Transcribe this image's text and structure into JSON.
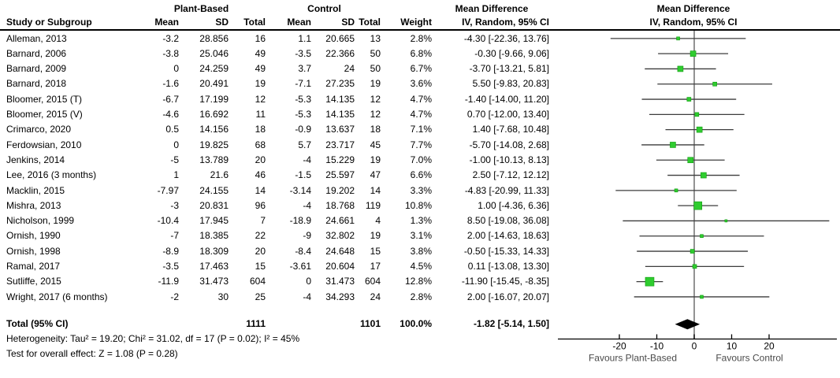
{
  "table": {
    "group1_label": "Plant-Based",
    "group2_label": "Control",
    "md_title": "Mean Difference",
    "md_subtitle": "IV, Random, 95% CI",
    "headers": {
      "study": "Study or Subgroup",
      "mean": "Mean",
      "sd": "SD",
      "total": "Total",
      "weight": "Weight"
    }
  },
  "rows": [
    {
      "name": "Alleman, 2013",
      "pb_mean": "-3.2",
      "pb_sd": "28.856",
      "pb_total": "16",
      "c_mean": "1.1",
      "c_sd": "20.665",
      "c_total": "13",
      "weight": "2.8%",
      "ci": "-4.30 [-22.36, 13.76]"
    },
    {
      "name": "Barnard, 2006",
      "pb_mean": "-3.8",
      "pb_sd": "25.046",
      "pb_total": "49",
      "c_mean": "-3.5",
      "c_sd": "22.366",
      "c_total": "50",
      "weight": "6.8%",
      "ci": "-0.30 [-9.66, 9.06]"
    },
    {
      "name": "Barnard, 2009",
      "pb_mean": "0",
      "pb_sd": "24.259",
      "pb_total": "49",
      "c_mean": "3.7",
      "c_sd": "24",
      "c_total": "50",
      "weight": "6.7%",
      "ci": "-3.70 [-13.21, 5.81]"
    },
    {
      "name": "Barnard, 2018",
      "pb_mean": "-1.6",
      "pb_sd": "20.491",
      "pb_total": "19",
      "c_mean": "-7.1",
      "c_sd": "27.235",
      "c_total": "19",
      "weight": "3.6%",
      "ci": "5.50 [-9.83, 20.83]"
    },
    {
      "name": "Bloomer, 2015 (T)",
      "pb_mean": "-6.7",
      "pb_sd": "17.199",
      "pb_total": "12",
      "c_mean": "-5.3",
      "c_sd": "14.135",
      "c_total": "12",
      "weight": "4.7%",
      "ci": "-1.40 [-14.00, 11.20]"
    },
    {
      "name": "Bloomer, 2015 (V)",
      "pb_mean": "-4.6",
      "pb_sd": "16.692",
      "pb_total": "11",
      "c_mean": "-5.3",
      "c_sd": "14.135",
      "c_total": "12",
      "weight": "4.7%",
      "ci": "0.70 [-12.00, 13.40]"
    },
    {
      "name": "Crimarco, 2020",
      "pb_mean": "0.5",
      "pb_sd": "14.156",
      "pb_total": "18",
      "c_mean": "-0.9",
      "c_sd": "13.637",
      "c_total": "18",
      "weight": "7.1%",
      "ci": "1.40 [-7.68, 10.48]"
    },
    {
      "name": "Ferdowsian, 2010",
      "pb_mean": "0",
      "pb_sd": "19.825",
      "pb_total": "68",
      "c_mean": "5.7",
      "c_sd": "23.717",
      "c_total": "45",
      "weight": "7.7%",
      "ci": "-5.70 [-14.08, 2.68]"
    },
    {
      "name": "Jenkins, 2014",
      "pb_mean": "-5",
      "pb_sd": "13.789",
      "pb_total": "20",
      "c_mean": "-4",
      "c_sd": "15.229",
      "c_total": "19",
      "weight": "7.0%",
      "ci": "-1.00 [-10.13, 8.13]"
    },
    {
      "name": "Lee, 2016 (3 months)",
      "pb_mean": "1",
      "pb_sd": "21.6",
      "pb_total": "46",
      "c_mean": "-1.5",
      "c_sd": "25.597",
      "c_total": "47",
      "weight": "6.6%",
      "ci": "2.50 [-7.12, 12.12]"
    },
    {
      "name": "Macklin, 2015",
      "pb_mean": "-7.97",
      "pb_sd": "24.155",
      "pb_total": "14",
      "c_mean": "-3.14",
      "c_sd": "19.202",
      "c_total": "14",
      "weight": "3.3%",
      "ci": "-4.83 [-20.99, 11.33]"
    },
    {
      "name": "Mishra, 2013",
      "pb_mean": "-3",
      "pb_sd": "20.831",
      "pb_total": "96",
      "c_mean": "-4",
      "c_sd": "18.768",
      "c_total": "119",
      "weight": "10.8%",
      "ci": "1.00 [-4.36, 6.36]"
    },
    {
      "name": "Nicholson, 1999",
      "pb_mean": "-10.4",
      "pb_sd": "17.945",
      "pb_total": "7",
      "c_mean": "-18.9",
      "c_sd": "24.661",
      "c_total": "4",
      "weight": "1.3%",
      "ci": "8.50 [-19.08, 36.08]"
    },
    {
      "name": "Ornish, 1990",
      "pb_mean": "-7",
      "pb_sd": "18.385",
      "pb_total": "22",
      "c_mean": "-9",
      "c_sd": "32.802",
      "c_total": "19",
      "weight": "3.1%",
      "ci": "2.00 [-14.63, 18.63]"
    },
    {
      "name": "Ornish, 1998",
      "pb_mean": "-8.9",
      "pb_sd": "18.309",
      "pb_total": "20",
      "c_mean": "-8.4",
      "c_sd": "24.648",
      "c_total": "15",
      "weight": "3.8%",
      "ci": "-0.50 [-15.33, 14.33]"
    },
    {
      "name": "Ramal, 2017",
      "pb_mean": "-3.5",
      "pb_sd": "17.463",
      "pb_total": "15",
      "c_mean": "-3.61",
      "c_sd": "20.604",
      "c_total": "17",
      "weight": "4.5%",
      "ci": "0.11 [-13.08, 13.30]"
    },
    {
      "name": "Sutliffe, 2015",
      "pb_mean": "-11.9",
      "pb_sd": "31.473",
      "pb_total": "604",
      "c_mean": "0",
      "c_sd": "31.473",
      "c_total": "604",
      "weight": "12.8%",
      "ci": "-11.90 [-15.45, -8.35]"
    },
    {
      "name": "Wright, 2017 (6 months)",
      "pb_mean": "-2",
      "pb_sd": "30",
      "pb_total": "25",
      "c_mean": "-4",
      "c_sd": "34.293",
      "c_total": "24",
      "weight": "2.8%",
      "ci": "2.00 [-16.07, 20.07]"
    }
  ],
  "total_row": {
    "label": "Total (95% CI)",
    "pb_total": "1111",
    "c_total": "1101",
    "weight": "100.0%",
    "ci": "-1.82 [-5.14, 1.50]"
  },
  "footer": {
    "heterogeneity": "Heterogeneity: Tau² = 19.20; Chi² = 31.02, df = 17 (P = 0.02); I² = 45%",
    "overall_effect": "Test for overall effect: Z = 1.08 (P = 0.28)"
  },
  "colors": {
    "marker_green": "#2fcc2f",
    "marker_border": "#0f9b0f",
    "ci_line": "#3c3c3c",
    "zero_line": "#808080",
    "axis": "#000000",
    "diamond": "#000000",
    "favours_text": "#4a4a4a"
  },
  "chart_data": {
    "type": "forest",
    "effect_measure": "Mean Difference",
    "model": "IV, Random, 95% CI",
    "axis": {
      "ticks": [
        -20,
        -10,
        0,
        10,
        20
      ],
      "xmin": -36.5,
      "xmax": 38.5,
      "zero_line": 0
    },
    "favours_left": "Favours Plant-Based",
    "favours_right": "Favours Control",
    "studies": [
      {
        "name": "Alleman, 2013",
        "md": -4.3,
        "lo": -22.36,
        "hi": 13.76,
        "weight": 2.8
      },
      {
        "name": "Barnard, 2006",
        "md": -0.3,
        "lo": -9.66,
        "hi": 9.06,
        "weight": 6.8
      },
      {
        "name": "Barnard, 2009",
        "md": -3.7,
        "lo": -13.21,
        "hi": 5.81,
        "weight": 6.7
      },
      {
        "name": "Barnard, 2018",
        "md": 5.5,
        "lo": -9.83,
        "hi": 20.83,
        "weight": 3.6
      },
      {
        "name": "Bloomer, 2015 (T)",
        "md": -1.4,
        "lo": -14.0,
        "hi": 11.2,
        "weight": 4.7
      },
      {
        "name": "Bloomer, 2015 (V)",
        "md": 0.7,
        "lo": -12.0,
        "hi": 13.4,
        "weight": 4.7
      },
      {
        "name": "Crimarco, 2020",
        "md": 1.4,
        "lo": -7.68,
        "hi": 10.48,
        "weight": 7.1
      },
      {
        "name": "Ferdowsian, 2010",
        "md": -5.7,
        "lo": -14.08,
        "hi": 2.68,
        "weight": 7.7
      },
      {
        "name": "Jenkins, 2014",
        "md": -1.0,
        "lo": -10.13,
        "hi": 8.13,
        "weight": 7.0
      },
      {
        "name": "Lee, 2016 (3 months)",
        "md": 2.5,
        "lo": -7.12,
        "hi": 12.12,
        "weight": 6.6
      },
      {
        "name": "Macklin, 2015",
        "md": -4.83,
        "lo": -20.99,
        "hi": 11.33,
        "weight": 3.3
      },
      {
        "name": "Mishra, 2013",
        "md": 1.0,
        "lo": -4.36,
        "hi": 6.36,
        "weight": 10.8
      },
      {
        "name": "Nicholson, 1999",
        "md": 8.5,
        "lo": -19.08,
        "hi": 36.08,
        "weight": 1.3
      },
      {
        "name": "Ornish, 1990",
        "md": 2.0,
        "lo": -14.63,
        "hi": 18.63,
        "weight": 3.1
      },
      {
        "name": "Ornish, 1998",
        "md": -0.5,
        "lo": -15.33,
        "hi": 14.33,
        "weight": 3.8
      },
      {
        "name": "Ramal, 2017",
        "md": 0.11,
        "lo": -13.08,
        "hi": 13.3,
        "weight": 4.5
      },
      {
        "name": "Sutliffe, 2015",
        "md": -11.9,
        "lo": -15.45,
        "hi": -8.35,
        "weight": 12.8
      },
      {
        "name": "Wright, 2017 (6 months)",
        "md": 2.0,
        "lo": -16.07,
        "hi": 20.07,
        "weight": 2.8
      }
    ],
    "total": {
      "label": "Total (95% CI)",
      "md": -1.82,
      "lo": -5.14,
      "hi": 1.5,
      "weight": 100.0
    }
  }
}
